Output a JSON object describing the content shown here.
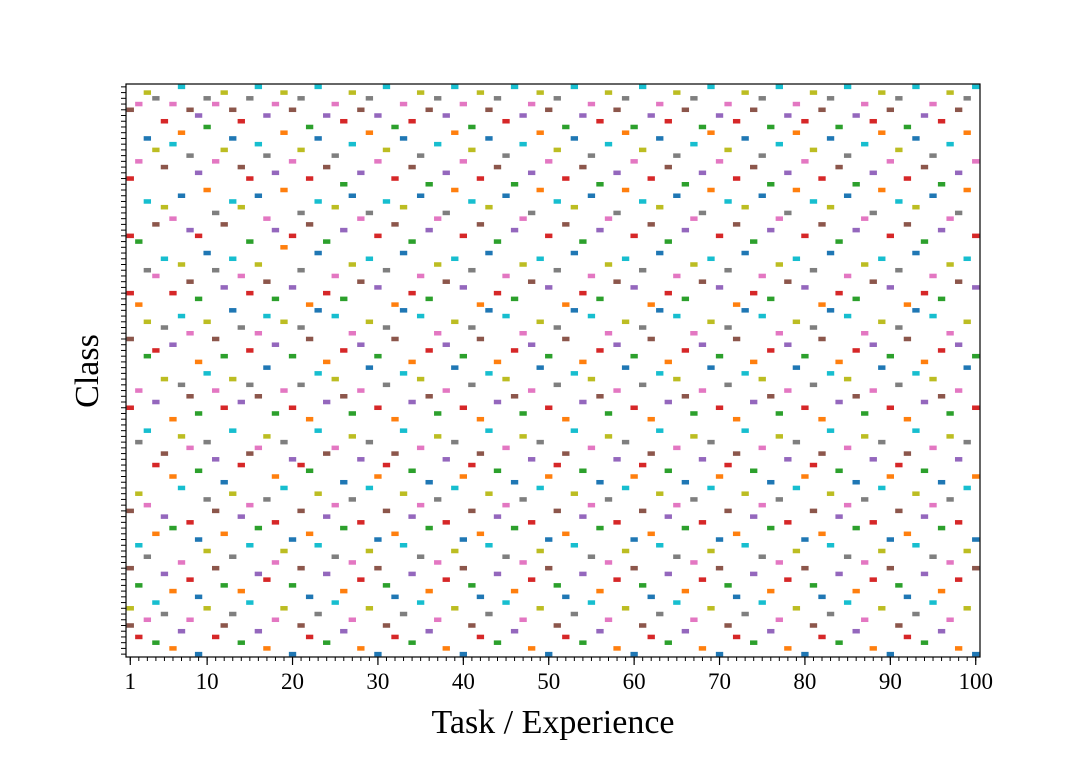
{
  "chart_data": {
    "type": "class-grid",
    "xlabel": "Task / Experience",
    "ylabel": "Class",
    "xlim": [
      0.5,
      100.5
    ],
    "ylim": [
      -0.5,
      99.5
    ],
    "xticks": [
      1,
      10,
      20,
      30,
      40,
      50,
      60,
      70,
      80,
      90,
      100
    ],
    "yticks": [
      0,
      1,
      2,
      3,
      4,
      5,
      6,
      7,
      8,
      9,
      10,
      11,
      12,
      13,
      14,
      15,
      16,
      17,
      18,
      19,
      20,
      21,
      22,
      23,
      24,
      25,
      26,
      27,
      28,
      29,
      30,
      31,
      32,
      33,
      34,
      35,
      36,
      37,
      38,
      39,
      40,
      41,
      42,
      43,
      44,
      45,
      46,
      47,
      48,
      49,
      50,
      51,
      52,
      53,
      54,
      55,
      56,
      57,
      58,
      59,
      60,
      61,
      62,
      63,
      64,
      65,
      66,
      67,
      68,
      69,
      70,
      71,
      72,
      73,
      74,
      75,
      76,
      77,
      78,
      79,
      80,
      81,
      82,
      83,
      84,
      85,
      86,
      87,
      88,
      89,
      90,
      91,
      92,
      93,
      94,
      95,
      96,
      97,
      98,
      99
    ],
    "colors": [
      "#1f77b4",
      "#ff7f0e",
      "#2ca02c",
      "#d62728",
      "#9467bd",
      "#8c564b",
      "#e377c2",
      "#7f7f7f",
      "#bcbd22",
      "#17becf"
    ],
    "x": [
      1,
      2,
      3,
      4,
      5,
      6,
      7,
      8,
      9,
      10,
      11,
      12,
      13,
      14,
      15,
      16,
      17,
      18,
      19,
      20,
      21,
      22,
      23,
      24,
      25,
      26,
      27,
      28,
      29,
      30,
      31,
      32,
      33,
      34,
      35,
      36,
      37,
      38,
      39,
      40,
      41,
      42,
      43,
      44,
      45,
      46,
      47,
      48,
      49,
      50,
      51,
      52,
      53,
      54,
      55,
      56,
      57,
      58,
      59,
      60,
      61,
      62,
      63,
      64,
      65,
      66,
      67,
      68,
      69,
      70,
      71,
      72,
      73,
      74,
      75,
      76,
      77,
      78,
      79,
      80,
      81,
      82,
      83,
      84,
      85,
      86,
      87,
      88,
      89,
      90,
      91,
      92,
      93,
      94,
      95,
      96,
      97,
      98,
      99,
      100
    ],
    "values": [
      [
        5,
        8,
        15,
        25,
        43,
        55,
        63,
        73,
        83,
        95
      ],
      [
        3,
        12,
        19,
        28,
        37,
        46,
        61,
        72,
        86,
        96
      ],
      [
        6,
        17,
        26,
        39,
        52,
        58,
        67,
        79,
        90,
        98
      ],
      [
        2,
        9,
        21,
        33,
        44,
        53,
        66,
        75,
        88,
        97
      ],
      [
        7,
        14,
        24,
        35,
        48,
        57,
        69,
        78,
        85,
        93
      ],
      [
        1,
        11,
        22,
        31,
        41,
        54,
        63,
        76,
        89,
        96
      ],
      [
        4,
        16,
        29,
        38,
        47,
        59,
        68,
        80,
        91,
        99
      ],
      [
        6,
        13,
        23,
        36,
        45,
        56,
        65,
        74,
        87,
        95
      ],
      [
        0,
        10,
        20,
        32,
        42,
        51,
        62,
        73,
        84,
        94
      ],
      [
        8,
        18,
        27,
        37,
        49,
        58,
        70,
        81,
        92,
        97
      ],
      [
        3,
        15,
        25,
        34,
        46,
        55,
        67,
        77,
        86,
        96
      ],
      [
        5,
        12,
        21,
        30,
        43,
        52,
        64,
        75,
        88,
        98
      ],
      [
        7,
        17,
        28,
        39,
        48,
        60,
        69,
        79,
        90,
        95
      ],
      [
        2,
        11,
        24,
        33,
        44,
        57,
        66,
        78,
        85,
        93
      ],
      [
        9,
        19,
        26,
        35,
        47,
        53,
        63,
        72,
        83,
        97
      ],
      [
        4,
        14,
        22,
        36,
        45,
        56,
        68,
        80,
        89,
        99
      ],
      [
        1,
        13,
        27,
        38,
        50,
        59,
        65,
        76,
        87,
        94
      ],
      [
        6,
        16,
        23,
        31,
        42,
        54,
        62,
        74,
        84,
        96
      ],
      [
        8,
        18,
        29,
        37,
        46,
        58,
        71,
        81,
        91,
        98
      ],
      [
        0,
        12,
        20,
        34,
        43,
        52,
        64,
        73,
        86,
        95
      ],
      [
        5,
        15,
        25,
        33,
        47,
        57,
        67,
        77,
        88,
        97
      ],
      [
        3,
        10,
        21,
        32,
        41,
        55,
        61,
        75,
        83,
        92
      ],
      [
        7,
        19,
        28,
        39,
        49,
        60,
        70,
        79,
        90,
        99
      ],
      [
        2,
        14,
        24,
        35,
        44,
        51,
        63,
        72,
        85,
        94
      ],
      [
        9,
        17,
        26,
        36,
        48,
        59,
        66,
        78,
        87,
        96
      ],
      [
        4,
        11,
        22,
        30,
        45,
        53,
        62,
        74,
        82,
        93
      ],
      [
        6,
        16,
        27,
        38,
        42,
        56,
        68,
        80,
        89,
        98
      ],
      [
        1,
        13,
        23,
        34,
        46,
        54,
        65,
        76,
        84,
        95
      ],
      [
        8,
        18,
        29,
        37,
        50,
        58,
        69,
        77,
        91,
        97
      ],
      [
        0,
        15,
        20,
        31,
        43,
        52,
        64,
        73,
        86,
        94
      ],
      [
        5,
        12,
        25,
        33,
        47,
        57,
        67,
        79,
        88,
        99
      ],
      [
        3,
        10,
        21,
        35,
        41,
        55,
        61,
        75,
        83,
        92
      ],
      [
        7,
        19,
        28,
        39,
        49,
        60,
        70,
        78,
        90,
        96
      ],
      [
        2,
        14,
        24,
        32,
        44,
        51,
        63,
        72,
        85,
        93
      ],
      [
        9,
        17,
        26,
        36,
        48,
        59,
        66,
        80,
        87,
        98
      ],
      [
        4,
        11,
        22,
        30,
        45,
        53,
        62,
        74,
        82,
        95
      ],
      [
        6,
        16,
        27,
        38,
        42,
        56,
        68,
        76,
        89,
        97
      ],
      [
        1,
        13,
        23,
        34,
        46,
        54,
        65,
        77,
        84,
        94
      ],
      [
        8,
        18,
        29,
        37,
        50,
        58,
        69,
        81,
        91,
        99
      ],
      [
        0,
        15,
        20,
        31,
        43,
        52,
        64,
        73,
        86,
        96
      ],
      [
        5,
        12,
        25,
        33,
        47,
        57,
        67,
        79,
        88,
        92
      ],
      [
        3,
        10,
        21,
        35,
        41,
        55,
        61,
        75,
        83,
        98
      ],
      [
        7,
        19,
        28,
        39,
        49,
        60,
        70,
        78,
        90,
        95
      ],
      [
        2,
        14,
        24,
        32,
        44,
        51,
        63,
        72,
        85,
        97
      ],
      [
        9,
        17,
        26,
        36,
        48,
        59,
        66,
        80,
        87,
        93
      ],
      [
        4,
        11,
        22,
        30,
        45,
        53,
        62,
        74,
        82,
        99
      ],
      [
        6,
        16,
        27,
        38,
        42,
        56,
        68,
        76,
        89,
        94
      ],
      [
        1,
        13,
        23,
        34,
        46,
        54,
        65,
        77,
        84,
        96
      ],
      [
        8,
        18,
        29,
        37,
        50,
        58,
        69,
        81,
        91,
        98
      ],
      [
        0,
        15,
        20,
        31,
        43,
        52,
        64,
        73,
        86,
        95
      ],
      [
        5,
        12,
        25,
        33,
        47,
        57,
        67,
        79,
        88,
        97
      ],
      [
        3,
        10,
        21,
        35,
        41,
        55,
        61,
        75,
        83,
        92
      ],
      [
        7,
        19,
        28,
        39,
        49,
        60,
        70,
        78,
        90,
        99
      ],
      [
        2,
        14,
        24,
        32,
        44,
        51,
        63,
        72,
        85,
        94
      ],
      [
        9,
        17,
        26,
        36,
        48,
        59,
        66,
        80,
        87,
        96
      ],
      [
        4,
        11,
        22,
        30,
        45,
        53,
        62,
        74,
        82,
        93
      ],
      [
        6,
        16,
        27,
        38,
        42,
        56,
        68,
        76,
        89,
        98
      ],
      [
        1,
        13,
        23,
        34,
        46,
        54,
        65,
        77,
        84,
        95
      ],
      [
        8,
        18,
        29,
        37,
        50,
        58,
        69,
        81,
        91,
        97
      ],
      [
        0,
        15,
        20,
        31,
        43,
        52,
        64,
        73,
        86,
        92
      ],
      [
        5,
        12,
        25,
        33,
        47,
        57,
        67,
        79,
        88,
        99
      ],
      [
        3,
        10,
        21,
        35,
        41,
        55,
        61,
        75,
        83,
        94
      ],
      [
        7,
        19,
        28,
        39,
        49,
        60,
        70,
        78,
        90,
        96
      ],
      [
        2,
        14,
        24,
        32,
        44,
        51,
        63,
        72,
        85,
        93
      ],
      [
        9,
        17,
        26,
        36,
        48,
        59,
        66,
        80,
        87,
        98
      ],
      [
        4,
        11,
        22,
        30,
        45,
        53,
        62,
        74,
        82,
        95
      ],
      [
        6,
        16,
        27,
        38,
        42,
        56,
        68,
        76,
        89,
        97
      ],
      [
        1,
        13,
        23,
        34,
        46,
        54,
        65,
        77,
        84,
        92
      ],
      [
        8,
        18,
        29,
        37,
        50,
        58,
        69,
        81,
        91,
        99
      ],
      [
        0,
        15,
        20,
        31,
        43,
        52,
        64,
        73,
        86,
        94
      ],
      [
        5,
        12,
        25,
        33,
        47,
        57,
        67,
        79,
        88,
        96
      ],
      [
        3,
        10,
        21,
        35,
        41,
        55,
        61,
        75,
        83,
        93
      ],
      [
        7,
        19,
        28,
        39,
        49,
        60,
        70,
        78,
        90,
        98
      ],
      [
        2,
        14,
        24,
        32,
        44,
        51,
        63,
        72,
        85,
        95
      ],
      [
        9,
        17,
        26,
        36,
        48,
        59,
        66,
        80,
        87,
        97
      ],
      [
        4,
        11,
        22,
        30,
        45,
        53,
        62,
        74,
        82,
        92
      ],
      [
        6,
        16,
        27,
        38,
        42,
        56,
        68,
        76,
        89,
        99
      ],
      [
        1,
        13,
        23,
        34,
        46,
        54,
        65,
        77,
        84,
        94
      ],
      [
        8,
        18,
        29,
        37,
        50,
        58,
        69,
        81,
        91,
        96
      ],
      [
        0,
        15,
        20,
        31,
        43,
        52,
        64,
        73,
        86,
        93
      ],
      [
        5,
        12,
        25,
        33,
        47,
        57,
        67,
        79,
        88,
        98
      ],
      [
        3,
        10,
        21,
        35,
        41,
        55,
        61,
        75,
        83,
        95
      ],
      [
        7,
        19,
        28,
        39,
        49,
        60,
        70,
        78,
        90,
        97
      ],
      [
        2,
        14,
        24,
        32,
        44,
        51,
        63,
        72,
        85,
        92
      ],
      [
        9,
        17,
        26,
        36,
        48,
        59,
        66,
        80,
        87,
        99
      ],
      [
        4,
        11,
        22,
        30,
        45,
        53,
        62,
        74,
        82,
        94
      ],
      [
        6,
        16,
        27,
        38,
        42,
        56,
        68,
        76,
        89,
        96
      ],
      [
        1,
        13,
        23,
        34,
        46,
        54,
        65,
        77,
        84,
        93
      ],
      [
        8,
        18,
        29,
        37,
        50,
        58,
        69,
        81,
        91,
        98
      ],
      [
        0,
        15,
        20,
        31,
        43,
        52,
        64,
        73,
        86,
        95
      ],
      [
        5,
        12,
        25,
        33,
        47,
        57,
        67,
        79,
        88,
        97
      ],
      [
        3,
        10,
        21,
        35,
        41,
        55,
        61,
        75,
        83,
        92
      ],
      [
        7,
        19,
        28,
        39,
        49,
        60,
        70,
        78,
        90,
        99
      ],
      [
        2,
        14,
        24,
        32,
        44,
        51,
        63,
        72,
        85,
        94
      ],
      [
        9,
        17,
        26,
        36,
        48,
        59,
        66,
        80,
        87,
        96
      ],
      [
        4,
        11,
        22,
        30,
        45,
        53,
        62,
        74,
        82,
        93
      ],
      [
        6,
        16,
        27,
        38,
        42,
        56,
        68,
        76,
        89,
        98
      ],
      [
        1,
        13,
        23,
        34,
        46,
        54,
        65,
        77,
        84,
        95
      ],
      [
        8,
        18,
        29,
        37,
        50,
        58,
        69,
        81,
        91,
        97
      ],
      [
        0,
        15,
        20,
        31,
        43,
        52,
        64,
        73,
        86,
        99
      ]
    ]
  }
}
